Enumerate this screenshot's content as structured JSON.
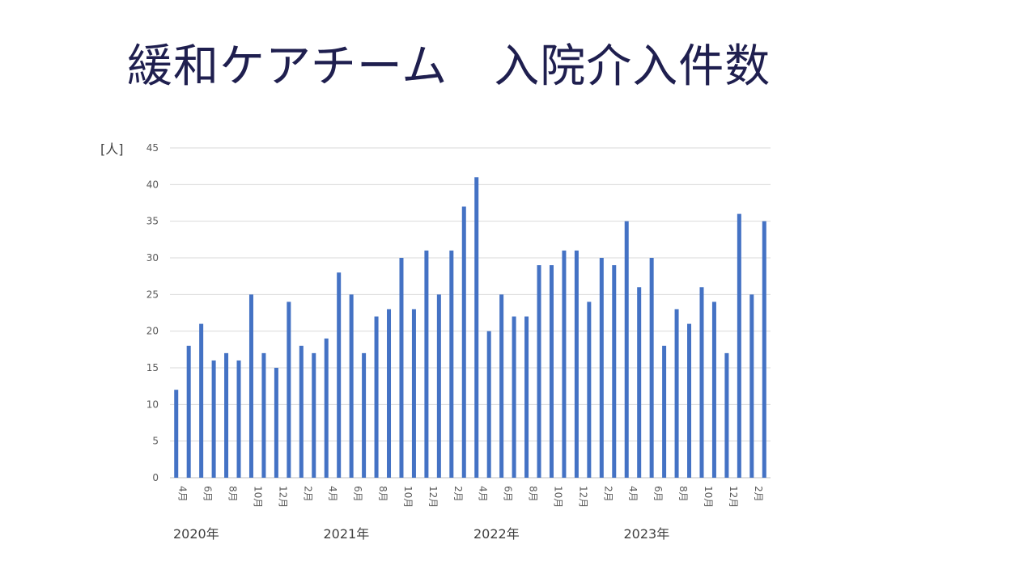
{
  "title": "緩和ケアチーム　入院介入件数",
  "chart_data": {
    "type": "bar",
    "ylabel": "[人]",
    "ylim": [
      0,
      45
    ],
    "yticks": [
      0,
      5,
      10,
      15,
      20,
      25,
      30,
      35,
      40,
      45
    ],
    "grid": true,
    "color": "#4472c4",
    "categories": [
      "2020-04",
      "2020-05",
      "2020-06",
      "2020-07",
      "2020-08",
      "2020-09",
      "2020-10",
      "2020-11",
      "2020-12",
      "2021-01",
      "2021-02",
      "2021-03",
      "2021-04",
      "2021-05",
      "2021-06",
      "2021-07",
      "2021-08",
      "2021-09",
      "2021-10",
      "2021-11",
      "2021-12",
      "2022-01",
      "2022-02",
      "2022-03",
      "2022-04",
      "2022-05",
      "2022-06",
      "2022-07",
      "2022-08",
      "2022-09",
      "2022-10",
      "2022-11",
      "2022-12",
      "2023-01",
      "2023-02",
      "2023-03",
      "2023-04",
      "2023-05",
      "2023-06",
      "2023-07",
      "2023-08",
      "2023-09",
      "2023-10",
      "2023-11",
      "2023-12",
      "2024-01",
      "2024-02",
      "2024-03"
    ],
    "values": [
      12,
      18,
      21,
      16,
      17,
      16,
      25,
      17,
      15,
      24,
      18,
      17,
      19,
      28,
      25,
      17,
      22,
      23,
      30,
      23,
      31,
      25,
      31,
      37,
      41,
      20,
      25,
      22,
      22,
      29,
      29,
      31,
      31,
      24,
      30,
      29,
      35,
      26,
      30,
      18,
      23,
      21,
      26,
      24,
      17,
      36,
      25,
      35
    ],
    "tick_labels": [
      "4月",
      "",
      "6月",
      "",
      "8月",
      "",
      "10月",
      "",
      "12月",
      "",
      "2月",
      "",
      "4月",
      "",
      "6月",
      "",
      "8月",
      "",
      "10月",
      "",
      "12月",
      "",
      "2月",
      "",
      "4月",
      "",
      "6月",
      "",
      "8月",
      "",
      "10月",
      "",
      "12月",
      "",
      "2月",
      "",
      "4月",
      "",
      "6月",
      "",
      "8月",
      "",
      "10月",
      "",
      "12月",
      "",
      "2月",
      ""
    ],
    "year_labels": [
      {
        "label": "2020年",
        "index": 0
      },
      {
        "label": "2021年",
        "index": 12
      },
      {
        "label": "2022年",
        "index": 24
      },
      {
        "label": "2023年",
        "index": 36
      }
    ]
  }
}
